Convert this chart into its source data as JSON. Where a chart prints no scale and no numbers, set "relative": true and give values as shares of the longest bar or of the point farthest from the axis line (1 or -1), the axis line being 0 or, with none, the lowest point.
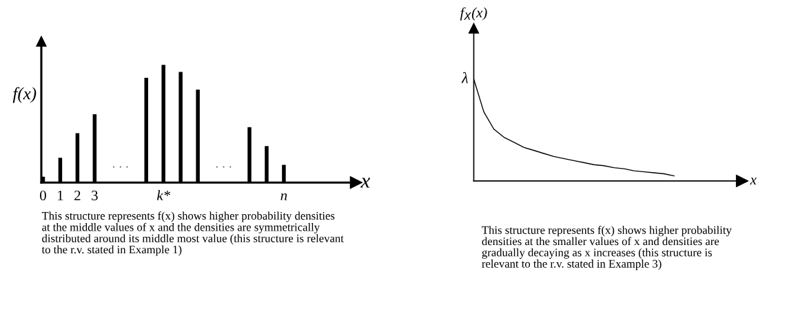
{
  "chart_data": [
    {
      "type": "bar",
      "relative": true,
      "color": "#000000",
      "ylabel": "f(x)",
      "xlabel": "x",
      "categories": [
        "0",
        "1",
        "2",
        "3",
        null,
        null,
        null,
        "k*",
        null,
        null,
        null,
        null,
        null,
        null,
        "n"
      ],
      "values": [
        0.05,
        0.21,
        0.42,
        0.58,
        null,
        null,
        0.89,
        1,
        0.94,
        0.79,
        null,
        null,
        0.47,
        0.31,
        0.15
      ],
      "annotations": [
        "· · ·",
        "· · ·",
        "This structure represents f(x) shows higher probability densities at the middle values of x and the densities are symmetrically distributed around its middle most value (this structure is relevant to the r.v. stated in Example 1)"
      ]
    },
    {
      "type": "line",
      "relative": true,
      "color": "#000000",
      "ylabel": "f$_{X}$(x)",
      "xlabel": "x",
      "categories": [
        null,
        null,
        null,
        null,
        null,
        null,
        null,
        null,
        null,
        null,
        null,
        null,
        null,
        null,
        null,
        null,
        null,
        null,
        null,
        null,
        null,
        null,
        null,
        null,
        null,
        null,
        null
      ],
      "values": [
        1.0,
        0.68,
        0.51,
        0.43,
        0.38,
        0.33,
        0.3,
        0.27,
        0.24,
        0.22,
        0.2,
        0.18,
        0.16,
        0.15,
        0.13,
        0.12,
        0.1,
        0.09,
        0.08,
        0.07,
        0.05,
        null,
        null,
        null,
        null,
        null,
        null
      ],
      "annotations": [
        "λ",
        "This structure represents f(x) shows higher probability densities at the smaller values of x and densities are gradually decaying as x increases (this structure is relevant to the r.v. stated in Example 3)"
      ]
    }
  ]
}
